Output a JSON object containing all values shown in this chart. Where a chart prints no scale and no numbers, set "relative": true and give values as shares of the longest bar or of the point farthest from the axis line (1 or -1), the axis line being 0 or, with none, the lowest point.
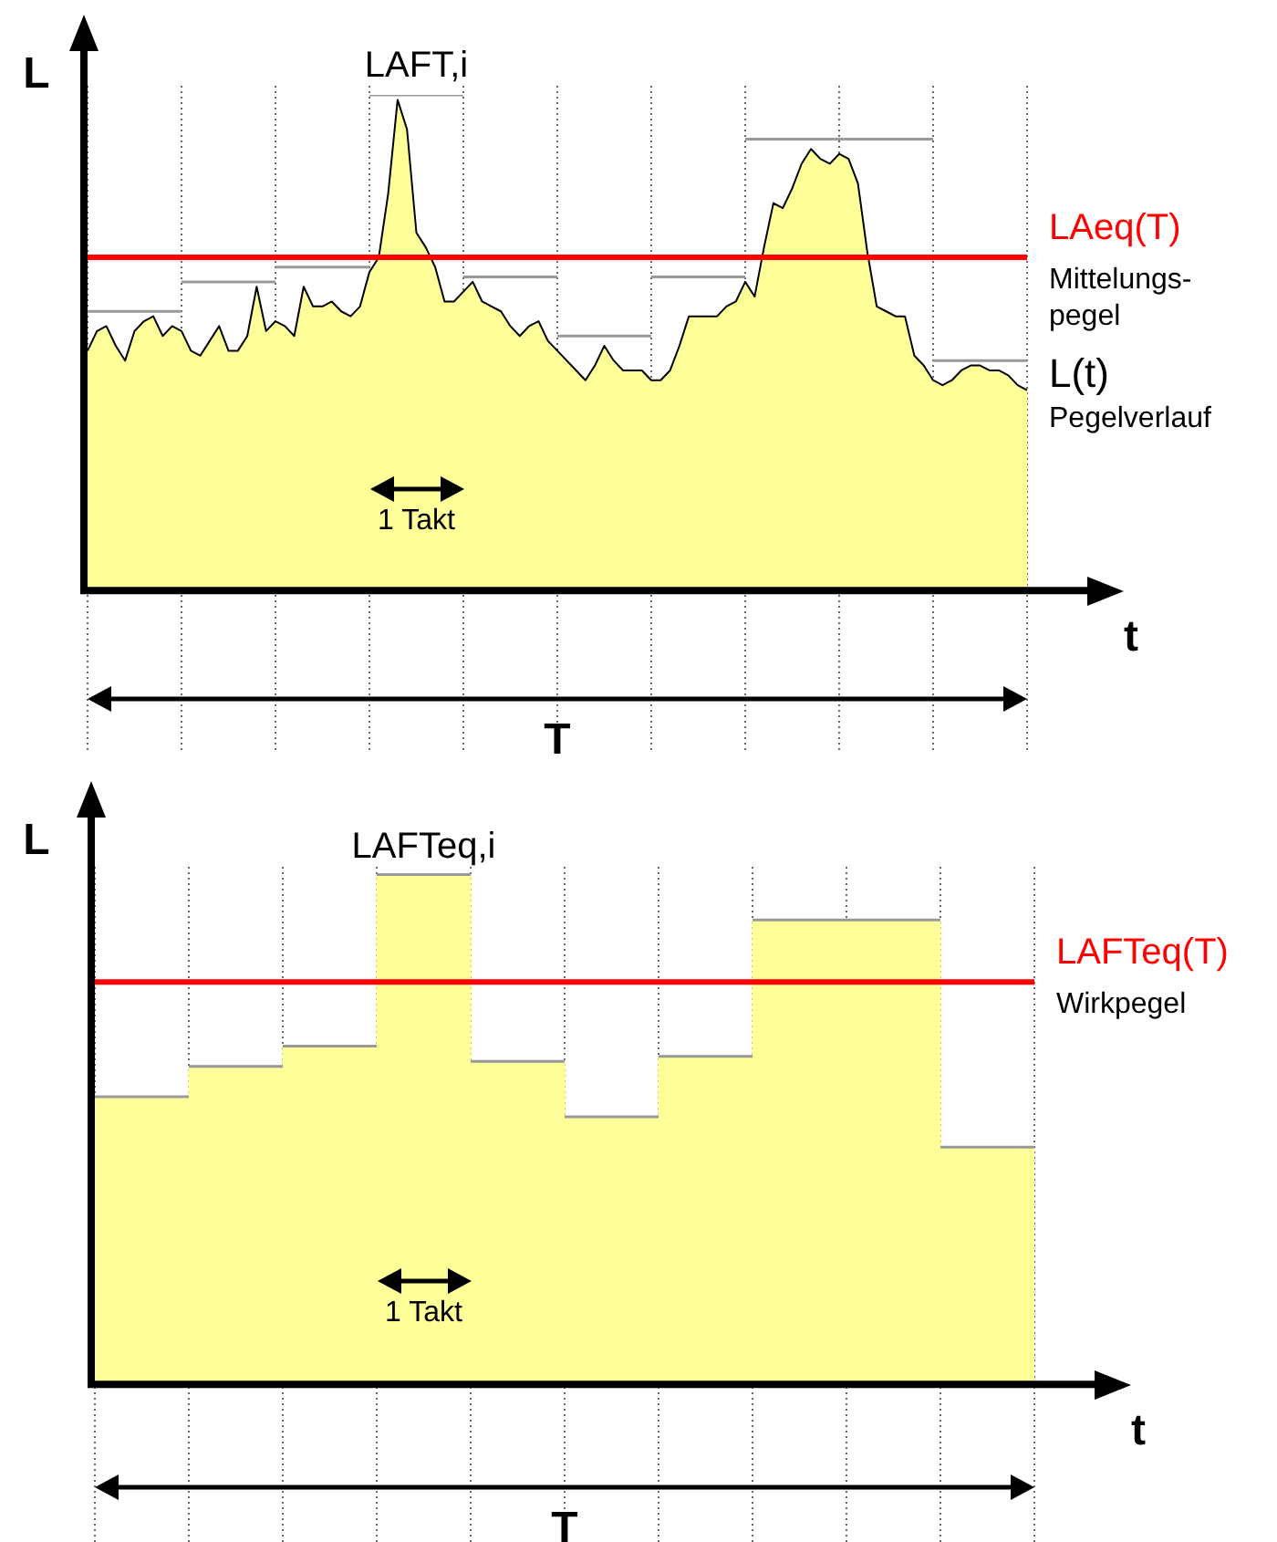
{
  "chart_data": [
    {
      "type": "area",
      "xlabel": "t",
      "ylabel": "L",
      "relative": true,
      "grid": "x",
      "categories": [
        null,
        null,
        null,
        null,
        null,
        null,
        null,
        null,
        null,
        null,
        null,
        null,
        null,
        null,
        null,
        null,
        null,
        null,
        null,
        null,
        null,
        null,
        null,
        null,
        null,
        null,
        null,
        null,
        null,
        null,
        null,
        null,
        null,
        null,
        null,
        null,
        null,
        null,
        null,
        null,
        null,
        null,
        null,
        null,
        null,
        null,
        null,
        null,
        null,
        null,
        null,
        null,
        null,
        null,
        null,
        null,
        null,
        null,
        null,
        null,
        null,
        null,
        null,
        null,
        null,
        null,
        null,
        null,
        null,
        null,
        null,
        null,
        null,
        null,
        null,
        null,
        null,
        null,
        null,
        null,
        null,
        null,
        null,
        null,
        null,
        null,
        null,
        null,
        null,
        null,
        null,
        null,
        null,
        null,
        null,
        null,
        null,
        null,
        null,
        null,
        null
      ],
      "series": [
        {
          "name": "L(t)",
          "type": "area",
          "color": "#ffff99",
          "values": [
            0.48,
            0.52,
            0.53,
            0.49,
            0.46,
            0.52,
            0.54,
            0.55,
            0.51,
            0.53,
            0.52,
            0.48,
            0.47,
            0.5,
            0.53,
            0.48,
            0.48,
            0.51,
            0.61,
            0.52,
            0.54,
            0.53,
            0.51,
            0.61,
            0.57,
            0.57,
            0.58,
            0.56,
            0.55,
            0.57,
            0.64,
            0.67,
            0.8,
            0.99,
            0.93,
            0.72,
            0.69,
            0.65,
            0.58,
            0.58,
            0.6,
            0.62,
            0.58,
            0.57,
            0.56,
            0.53,
            0.51,
            0.53,
            0.54,
            0.5,
            0.48,
            0.46,
            0.44,
            0.42,
            0.45,
            0.49,
            0.46,
            0.44,
            0.44,
            0.44,
            0.42,
            0.42,
            0.44,
            0.49,
            0.55,
            0.55,
            0.55,
            0.55,
            0.57,
            0.58,
            0.62,
            0.59,
            0.69,
            0.78,
            0.77,
            0.81,
            0.86,
            0.89,
            0.87,
            0.86,
            0.88,
            0.87,
            0.82,
            0.68,
            0.57,
            0.56,
            0.55,
            0.55,
            0.47,
            0.45,
            0.42,
            0.41,
            0.42,
            0.44,
            0.45,
            0.45,
            0.44,
            0.44,
            0.43,
            0.41,
            0.4
          ]
        },
        {
          "type": "line",
          "color": "#999999",
          "values": [
            0.56,
            0.56,
            0.56,
            0.56,
            0.56,
            0.56,
            0.56,
            0.56,
            0.56,
            0.56,
            0.56,
            null,
            null,
            null,
            null,
            null,
            null,
            null,
            null,
            null,
            null,
            null,
            null,
            null,
            null,
            null,
            null,
            null,
            null,
            null,
            null,
            null,
            null,
            null,
            null,
            null,
            null,
            null,
            null,
            null,
            null,
            null,
            null,
            null,
            null,
            null,
            null,
            null,
            null,
            null,
            null,
            null,
            null,
            null,
            null,
            null,
            null,
            null,
            null,
            null,
            null,
            null,
            null,
            null,
            null,
            null,
            null,
            null,
            null,
            null,
            null,
            null,
            null,
            null,
            null,
            null,
            null,
            null,
            null,
            null,
            null,
            null,
            null,
            null,
            null,
            null,
            null,
            null,
            null,
            null,
            null,
            null,
            null,
            null,
            null,
            null,
            null,
            null,
            null,
            null,
            null
          ]
        },
        {
          "type": "line",
          "color": "#999999",
          "values": [
            null,
            null,
            null,
            null,
            null,
            null,
            null,
            null,
            null,
            null,
            0.62,
            0.62,
            0.62,
            0.62,
            0.62,
            0.62,
            0.62,
            0.62,
            0.62,
            0.62,
            0.62,
            null,
            null,
            null,
            null,
            null,
            null,
            null,
            null,
            null,
            null,
            null,
            null,
            null,
            null,
            null,
            null,
            null,
            null,
            null,
            null,
            null,
            null,
            null,
            null,
            null,
            null,
            null,
            null,
            null,
            null,
            null,
            null,
            null,
            null,
            null,
            null,
            null,
            null,
            null,
            null,
            null,
            null,
            null,
            null,
            null,
            null,
            null,
            null,
            null,
            null,
            null,
            null,
            null,
            null,
            null,
            null,
            null,
            null,
            null,
            null,
            null,
            null,
            null,
            null,
            null,
            null,
            null,
            null,
            null,
            null,
            null,
            null,
            null,
            null,
            null,
            null,
            null,
            null,
            null,
            null
          ]
        },
        {
          "type": "line",
          "color": "#999999",
          "values": [
            null,
            null,
            null,
            null,
            null,
            null,
            null,
            null,
            null,
            null,
            null,
            null,
            null,
            null,
            null,
            null,
            null,
            null,
            null,
            null,
            0.65,
            0.65,
            0.65,
            0.65,
            0.65,
            0.65,
            0.65,
            0.65,
            0.65,
            0.65,
            0.65,
            null,
            null,
            null,
            null,
            null,
            null,
            null,
            null,
            null,
            null,
            null,
            null,
            null,
            null,
            null,
            null,
            null,
            null,
            null,
            null,
            null,
            null,
            null,
            null,
            null,
            null,
            null,
            null,
            null,
            null,
            null,
            null,
            null,
            null,
            null,
            null,
            null,
            null,
            null,
            null,
            null,
            null,
            null,
            null,
            null,
            null,
            null,
            null,
            null,
            null,
            null,
            null,
            null,
            null,
            null,
            null,
            null,
            null,
            null,
            null,
            null,
            null,
            null,
            null,
            null,
            null,
            null,
            null,
            null,
            null
          ]
        },
        {
          "name": "LAFT,i",
          "type": "line",
          "color": "#999999",
          "values": [
            null,
            null,
            null,
            null,
            null,
            null,
            null,
            null,
            null,
            null,
            null,
            null,
            null,
            null,
            null,
            null,
            null,
            null,
            null,
            null,
            null,
            null,
            null,
            null,
            null,
            null,
            null,
            null,
            null,
            null,
            1,
            1,
            1,
            1,
            1,
            1,
            1,
            1,
            1,
            1,
            1,
            null,
            null,
            null,
            null,
            null,
            null,
            null,
            null,
            null,
            null,
            null,
            null,
            null,
            null,
            null,
            null,
            null,
            null,
            null,
            null,
            null,
            null,
            null,
            null,
            null,
            null,
            null,
            null,
            null,
            null,
            null,
            null,
            null,
            null,
            null,
            null,
            null,
            null,
            null,
            null,
            null,
            null,
            null,
            null,
            null,
            null,
            null,
            null,
            null,
            null,
            null,
            null,
            null,
            null,
            null,
            null,
            null,
            null,
            null,
            null
          ]
        },
        {
          "type": "line",
          "color": "#999999",
          "values": [
            null,
            null,
            null,
            null,
            null,
            null,
            null,
            null,
            null,
            null,
            null,
            null,
            null,
            null,
            null,
            null,
            null,
            null,
            null,
            null,
            null,
            null,
            null,
            null,
            null,
            null,
            null,
            null,
            null,
            null,
            null,
            null,
            null,
            null,
            null,
            null,
            null,
            null,
            null,
            null,
            0.63,
            0.63,
            0.63,
            0.63,
            0.63,
            0.63,
            0.63,
            0.63,
            0.63,
            0.63,
            0.63,
            null,
            null,
            null,
            null,
            null,
            null,
            null,
            null,
            null,
            null,
            null,
            null,
            null,
            null,
            null,
            null,
            null,
            null,
            null,
            null,
            null,
            null,
            null,
            null,
            null,
            null,
            null,
            null,
            null,
            null,
            null,
            null,
            null,
            null,
            null,
            null,
            null,
            null,
            null,
            null,
            null,
            null,
            null,
            null,
            null,
            null,
            null,
            null,
            null,
            null
          ]
        },
        {
          "type": "line",
          "color": "#999999",
          "values": [
            null,
            null,
            null,
            null,
            null,
            null,
            null,
            null,
            null,
            null,
            null,
            null,
            null,
            null,
            null,
            null,
            null,
            null,
            null,
            null,
            null,
            null,
            null,
            null,
            null,
            null,
            null,
            null,
            null,
            null,
            null,
            null,
            null,
            null,
            null,
            null,
            null,
            null,
            null,
            null,
            null,
            null,
            null,
            null,
            null,
            null,
            null,
            null,
            null,
            null,
            0.51,
            0.51,
            0.51,
            0.51,
            0.51,
            0.51,
            0.51,
            0.51,
            0.51,
            0.51,
            0.51,
            null,
            null,
            null,
            null,
            null,
            null,
            null,
            null,
            null,
            null,
            null,
            null,
            null,
            null,
            null,
            null,
            null,
            null,
            null,
            null,
            null,
            null,
            null,
            null,
            null,
            null,
            null,
            null,
            null,
            null,
            null,
            null,
            null,
            null,
            null,
            null,
            null,
            null,
            null,
            null
          ]
        },
        {
          "type": "line",
          "color": "#999999",
          "values": [
            null,
            null,
            null,
            null,
            null,
            null,
            null,
            null,
            null,
            null,
            null,
            null,
            null,
            null,
            null,
            null,
            null,
            null,
            null,
            null,
            null,
            null,
            null,
            null,
            null,
            null,
            null,
            null,
            null,
            null,
            null,
            null,
            null,
            null,
            null,
            null,
            null,
            null,
            null,
            null,
            null,
            null,
            null,
            null,
            null,
            null,
            null,
            null,
            null,
            null,
            null,
            null,
            null,
            null,
            null,
            null,
            null,
            null,
            null,
            null,
            0.63,
            0.63,
            0.63,
            0.63,
            0.63,
            0.63,
            0.63,
            0.63,
            0.63,
            0.63,
            0.63,
            null,
            null,
            null,
            null,
            null,
            null,
            null,
            null,
            null,
            null,
            null,
            null,
            null,
            null,
            null,
            null,
            null,
            null,
            null,
            null,
            null,
            null,
            null,
            null,
            null,
            null,
            null,
            null,
            null,
            null
          ]
        },
        {
          "type": "line",
          "color": "#999999",
          "values": [
            null,
            null,
            null,
            null,
            null,
            null,
            null,
            null,
            null,
            null,
            null,
            null,
            null,
            null,
            null,
            null,
            null,
            null,
            null,
            null,
            null,
            null,
            null,
            null,
            null,
            null,
            null,
            null,
            null,
            null,
            null,
            null,
            null,
            null,
            null,
            null,
            null,
            null,
            null,
            null,
            null,
            null,
            null,
            null,
            null,
            null,
            null,
            null,
            null,
            null,
            null,
            null,
            null,
            null,
            null,
            null,
            null,
            null,
            null,
            null,
            null,
            null,
            null,
            null,
            null,
            null,
            null,
            null,
            null,
            null,
            0.91,
            0.91,
            0.91,
            0.91,
            0.91,
            0.91,
            0.91,
            0.91,
            0.91,
            0.91,
            0.91,
            0.91,
            0.91,
            0.91,
            0.91,
            0.91,
            0.91,
            0.91,
            0.91,
            0.91,
            0.91,
            null,
            null,
            null,
            null,
            null,
            null,
            null,
            null,
            null,
            null
          ]
        },
        {
          "type": "line",
          "color": "#999999",
          "values": [
            null,
            null,
            null,
            null,
            null,
            null,
            null,
            null,
            null,
            null,
            null,
            null,
            null,
            null,
            null,
            null,
            null,
            null,
            null,
            null,
            null,
            null,
            null,
            null,
            null,
            null,
            null,
            null,
            null,
            null,
            null,
            null,
            null,
            null,
            null,
            null,
            null,
            null,
            null,
            null,
            null,
            null,
            null,
            null,
            null,
            null,
            null,
            null,
            null,
            null,
            null,
            null,
            null,
            null,
            null,
            null,
            null,
            null,
            null,
            null,
            null,
            null,
            null,
            null,
            null,
            null,
            null,
            null,
            null,
            null,
            null,
            null,
            null,
            null,
            null,
            null,
            null,
            null,
            null,
            null,
            null,
            null,
            null,
            null,
            null,
            null,
            null,
            null,
            null,
            null,
            0.46,
            0.46,
            0.46,
            0.46,
            0.46,
            0.46,
            0.46,
            0.46,
            0.46,
            0.46,
            0.46
          ]
        }
      ],
      "ref_lines": [
        {
          "axis": "y",
          "value": 0.67,
          "label": "LAeq(T)",
          "color": "#ff0000"
        }
      ],
      "annotations": [
        "Mittelungs-pegel",
        "Pegelverlauf",
        "1 Takt",
        "T"
      ]
    },
    {
      "type": "bar",
      "xlabel": "t",
      "ylabel": "L",
      "relative": true,
      "grid": "x",
      "categories": [
        null,
        null,
        null,
        null,
        null,
        null,
        null,
        null,
        null,
        null
      ],
      "series": [
        {
          "name": "LAFTeq,i",
          "color": "#ffff99",
          "values": [
            0.56,
            0.62,
            0.66,
            1,
            0.63,
            0.52,
            0.64,
            0.91,
            0.91,
            0.46
          ]
        }
      ],
      "ref_lines": [
        {
          "axis": "y",
          "value": 0.79,
          "label": "LAFTeq(T)",
          "color": "#ff0000"
        }
      ],
      "annotations": [
        "Wirkpegel",
        "1 Takt",
        "T"
      ]
    }
  ]
}
